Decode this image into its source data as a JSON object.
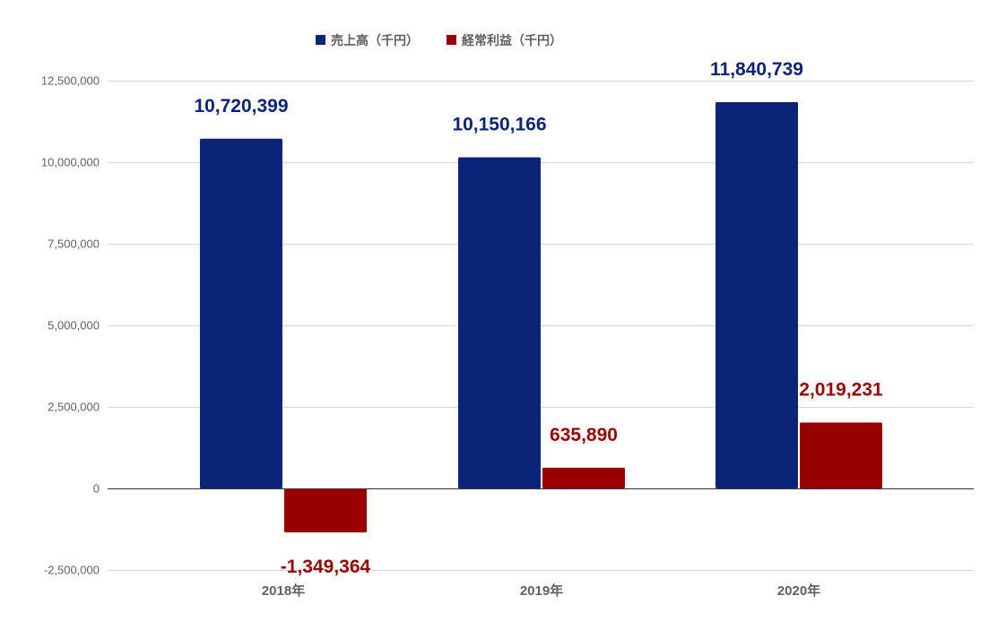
{
  "chart_data": {
    "type": "bar",
    "categories": [
      "2018年",
      "2019年",
      "2020年"
    ],
    "series": [
      {
        "name": "売上高（千円）",
        "color": "#0b2477",
        "values": [
          10720399,
          10150166,
          11840739
        ],
        "labels": [
          "10,720,399",
          "10,150,166",
          "11,840,739"
        ]
      },
      {
        "name": "経常利益（千円）",
        "color": "#990000",
        "values": [
          -1349364,
          635890,
          2019231
        ],
        "labels": [
          "-1,349,364",
          "635,890",
          "2,019,231"
        ]
      }
    ],
    "ylim": [
      -2500000,
      12500000
    ],
    "yticks": [
      12500000,
      10000000,
      7500000,
      5000000,
      2500000,
      0,
      -2500000
    ],
    "ytick_labels": [
      "12,500,000",
      "10,000,000",
      "7,500,000",
      "5,000,000",
      "2,500,000",
      "0",
      "-2,500,000"
    ],
    "legend_position": "top",
    "grid": true
  }
}
